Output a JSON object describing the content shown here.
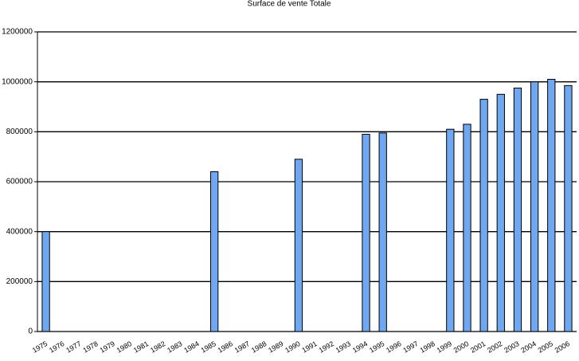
{
  "chart_data": {
    "type": "bar",
    "title": "Surface de vente Totale",
    "categories": [
      "1975",
      "1976",
      "1977",
      "1978",
      "1979",
      "1980",
      "1981",
      "1982",
      "1983",
      "1984",
      "1985",
      "1986",
      "1987",
      "1988",
      "1989",
      "1990",
      "1991",
      "1992",
      "1993",
      "1994",
      "1995",
      "1996",
      "1997",
      "1998",
      "1999",
      "2000",
      "2001",
      "2002",
      "2003",
      "2004",
      "2005",
      "2006"
    ],
    "values": [
      400000,
      null,
      null,
      null,
      null,
      null,
      null,
      null,
      null,
      null,
      640000,
      null,
      null,
      null,
      null,
      690000,
      null,
      null,
      null,
      790000,
      795000,
      null,
      null,
      null,
      810000,
      830000,
      930000,
      950000,
      975000,
      1000000,
      1010000,
      985000
    ],
    "color": "#6fa8f0",
    "ylim": [
      0,
      1200000
    ],
    "yticks": [
      0,
      200000,
      400000,
      600000,
      800000,
      1000000,
      1200000
    ],
    "grid": true
  }
}
